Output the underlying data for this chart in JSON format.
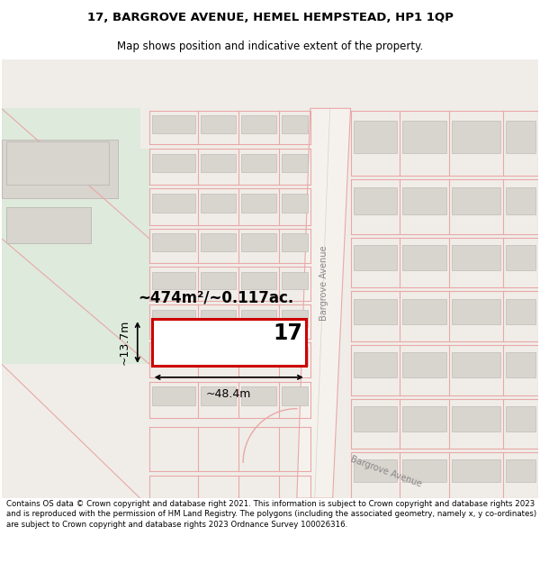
{
  "title_line1": "17, BARGROVE AVENUE, HEMEL HEMPSTEAD, HP1 1QP",
  "title_line2": "Map shows position and indicative extent of the property.",
  "footer_text": "Contains OS data © Crown copyright and database right 2021. This information is subject to Crown copyright and database rights 2023 and is reproduced with the permission of HM Land Registry. The polygons (including the associated geometry, namely x, y co-ordinates) are subject to Crown copyright and database rights 2023 Ordnance Survey 100026316.",
  "map_bg": "#f0ede8",
  "green_color": "#deeadc",
  "road_fill": "#e8e4df",
  "road_line_color": "#e8a8a8",
  "road_line_alpha": 0.85,
  "building_fill": "#d8d4ce",
  "building_edge": "#c0bcb8",
  "plot_edge": "#e8a8a8",
  "highlight_fill": "#ffffff",
  "highlight_stroke": "#cc0000",
  "highlight_lw": 2.2,
  "area_text": "~474m²/~0.117ac.",
  "width_text": "~48.4m",
  "height_text": "~13.7m",
  "number_text": "17",
  "title_fontsize": 9.5,
  "subtitle_fontsize": 8.5,
  "footer_fontsize": 6.2
}
